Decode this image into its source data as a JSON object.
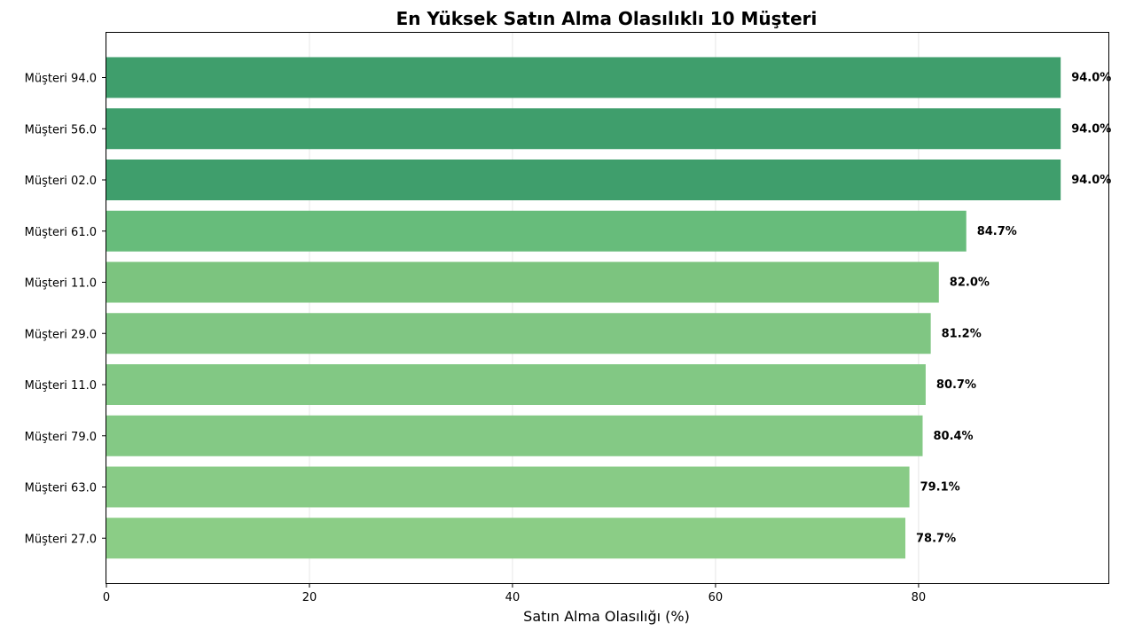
{
  "chart_data": {
    "type": "bar",
    "orientation": "horizontal",
    "title": "En Yüksek Satın Alma Olasılıklı 10 Müşteri",
    "xlabel": "Satın Alma Olasılığı (%)",
    "ylabel": "",
    "xlim": [
      0,
      98.7
    ],
    "xticks": [
      0,
      20,
      40,
      60,
      80
    ],
    "grid": "vertical",
    "legend": "none",
    "categories": [
      "Müşteri 94.0",
      "Müşteri 56.0",
      "Müşteri 02.0",
      "Müşteri 61.0",
      "Müşteri 11.0",
      "Müşteri 29.0",
      "Müşteri 11.0",
      "Müşteri 79.0",
      "Müşteri 63.0",
      "Müşteri 27.0"
    ],
    "values": [
      94.0,
      94.0,
      94.0,
      84.7,
      82.0,
      81.2,
      80.7,
      80.4,
      79.1,
      78.7
    ],
    "value_labels": [
      "94.0%",
      "94.0%",
      "94.0%",
      "84.7%",
      "82.0%",
      "81.2%",
      "80.7%",
      "80.4%",
      "79.1%",
      "78.7%"
    ],
    "colors": [
      "#3f9e6c",
      "#3f9e6c",
      "#3f9e6c",
      "#67bc7b",
      "#7cc47f",
      "#80c683",
      "#82c884",
      "#84c985",
      "#88cb86",
      "#8bcd86"
    ]
  }
}
